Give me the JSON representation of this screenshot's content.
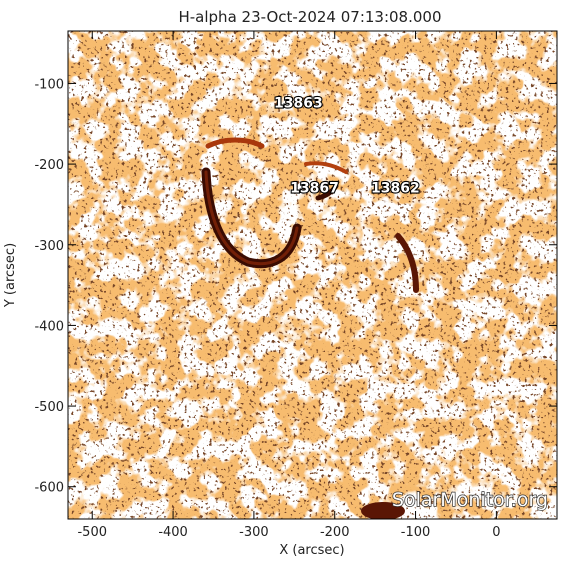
{
  "figure": {
    "title": "H-alpha 23-Oct-2024 07:13:08.000",
    "x_axis_label": "X (arcsec)",
    "y_axis_label": "Y (arcsec)",
    "x_ticks": [
      "-500",
      "-400",
      "-300",
      "-200",
      "-100",
      "0"
    ],
    "y_ticks": [
      "-100",
      "-200",
      "-300",
      "-400",
      "-500",
      "-600"
    ],
    "x_range": [
      -530,
      75
    ],
    "y_range": [
      -640,
      -35
    ],
    "x_tick_values": [
      -500,
      -400,
      -300,
      -200,
      -100,
      0
    ],
    "y_tick_values": [
      -100,
      -200,
      -300,
      -400,
      -500,
      -600
    ],
    "watermark": "SolarMonitor.org"
  },
  "regions": [
    {
      "label": "13863",
      "x": -245,
      "y": -130
    },
    {
      "label": "13867",
      "x": -225,
      "y": -235
    },
    {
      "label": "13862",
      "x": -125,
      "y": -235
    }
  ],
  "colors": {
    "background": "#ffffff",
    "chromosphere_light": "#ee8c3a",
    "chromosphere_mid": "#d96a1e",
    "chromosphere_dark": "#6a1e06",
    "filament": "#3a0c02",
    "frame": "#000000"
  }
}
